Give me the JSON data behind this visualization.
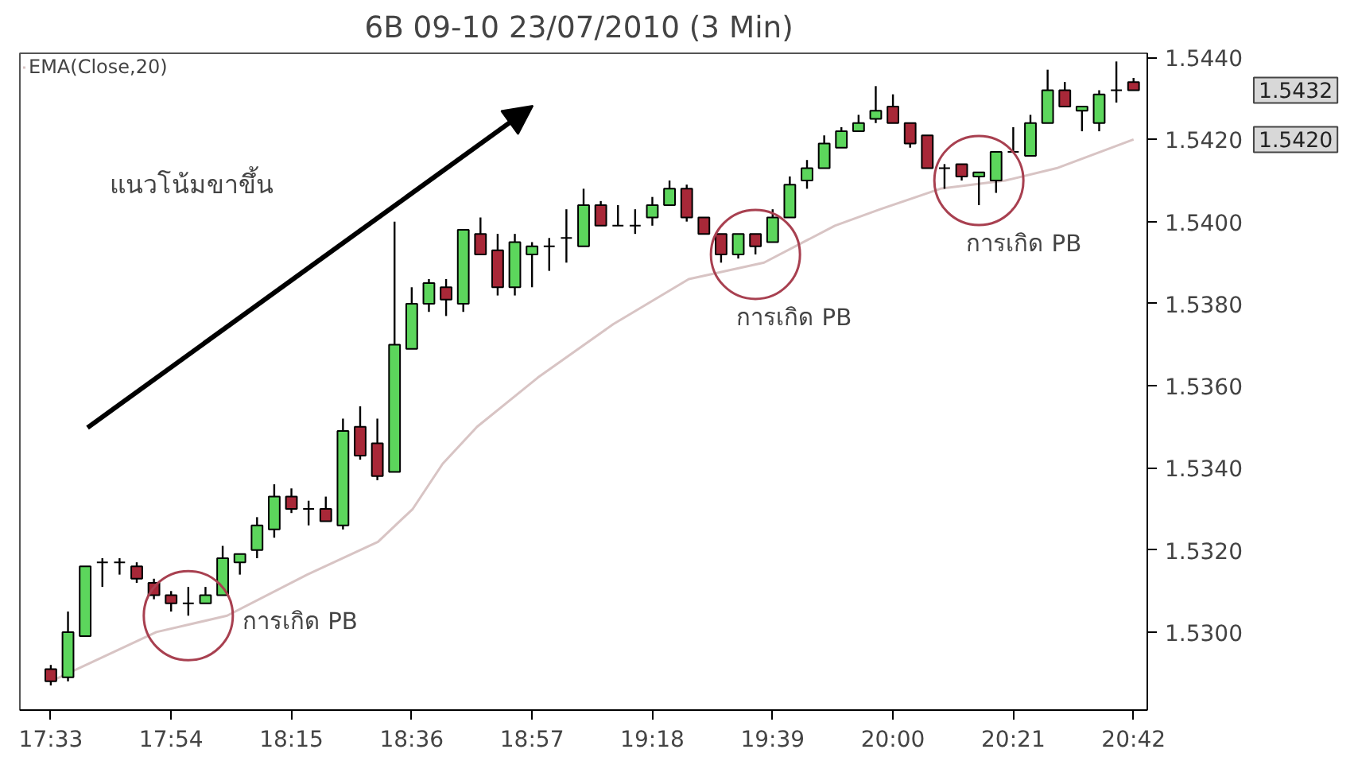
{
  "chart_data": {
    "type": "candlestick",
    "title": "6B 09-10  23/07/2010 (3 Min)",
    "x": [
      17.55,
      17.6,
      17.65,
      17.7,
      17.75,
      17.8,
      17.85,
      17.9,
      17.95,
      18.0,
      18.05,
      18.1,
      18.15,
      18.2,
      18.25,
      18.3,
      18.35,
      18.4,
      18.45,
      18.5,
      18.55,
      18.6,
      18.65,
      18.7,
      18.75,
      18.8,
      18.85,
      18.9,
      18.95,
      19.0,
      19.05,
      19.1,
      19.15,
      19.2,
      19.25,
      19.3,
      19.35,
      19.4,
      19.45,
      19.5,
      19.55,
      19.6,
      19.65,
      19.7,
      19.75,
      19.8,
      19.85,
      19.9,
      19.95,
      20.0,
      20.05,
      20.1,
      20.15,
      20.2,
      20.25,
      20.3,
      20.35,
      20.4,
      20.45,
      20.5,
      20.55,
      20.6,
      20.65,
      20.7
    ],
    "ohlc": [
      [
        1.5291,
        1.5292,
        1.5287,
        1.5288
      ],
      [
        1.5289,
        1.5305,
        1.5288,
        1.53
      ],
      [
        1.5299,
        1.5316,
        1.5299,
        1.5316
      ],
      [
        1.5317,
        1.5318,
        1.5311,
        1.5317
      ],
      [
        1.5317,
        1.5318,
        1.5314,
        1.5317
      ],
      [
        1.5316,
        1.5317,
        1.5312,
        1.5313
      ],
      [
        1.5312,
        1.5313,
        1.5308,
        1.5309
      ],
      [
        1.5309,
        1.531,
        1.5305,
        1.5307
      ],
      [
        1.5307,
        1.5311,
        1.5304,
        1.5307
      ],
      [
        1.5307,
        1.5311,
        1.5307,
        1.5309
      ],
      [
        1.5309,
        1.5321,
        1.5309,
        1.5318
      ],
      [
        1.5317,
        1.5319,
        1.5314,
        1.5319
      ],
      [
        1.532,
        1.5328,
        1.5318,
        1.5326
      ],
      [
        1.5325,
        1.5336,
        1.5323,
        1.5333
      ],
      [
        1.5333,
        1.5335,
        1.5329,
        1.533
      ],
      [
        1.533,
        1.5332,
        1.5326,
        1.533
      ],
      [
        1.533,
        1.5333,
        1.5327,
        1.5327
      ],
      [
        1.5326,
        1.5352,
        1.5325,
        1.5349
      ],
      [
        1.535,
        1.5355,
        1.5342,
        1.5343
      ],
      [
        1.5346,
        1.5352,
        1.5337,
        1.5338
      ],
      [
        1.5339,
        1.54,
        1.5339,
        1.537
      ],
      [
        1.5369,
        1.5384,
        1.5369,
        1.538
      ],
      [
        1.538,
        1.5386,
        1.5378,
        1.5385
      ],
      [
        1.5384,
        1.5386,
        1.5377,
        1.5381
      ],
      [
        1.538,
        1.5398,
        1.5378,
        1.5398
      ],
      [
        1.5397,
        1.5401,
        1.5392,
        1.5392
      ],
      [
        1.5393,
        1.5397,
        1.5382,
        1.5384
      ],
      [
        1.5384,
        1.5397,
        1.5382,
        1.5395
      ],
      [
        1.5392,
        1.5395,
        1.5384,
        1.5394
      ],
      [
        1.5394,
        1.5396,
        1.5388,
        1.5394
      ],
      [
        1.5396,
        1.5403,
        1.539,
        1.5396
      ],
      [
        1.5394,
        1.5408,
        1.5394,
        1.5404
      ],
      [
        1.5404,
        1.5405,
        1.5399,
        1.5399
      ],
      [
        1.5399,
        1.5404,
        1.5399,
        1.5399
      ],
      [
        1.5399,
        1.5403,
        1.5397,
        1.5399
      ],
      [
        1.5401,
        1.5406,
        1.5399,
        1.5404
      ],
      [
        1.5404,
        1.541,
        1.5404,
        1.5408
      ],
      [
        1.5408,
        1.5409,
        1.54,
        1.5401
      ],
      [
        1.5401,
        1.5401,
        1.5397,
        1.5397
      ],
      [
        1.5397,
        1.5397,
        1.539,
        1.5392
      ],
      [
        1.5392,
        1.5397,
        1.5391,
        1.5397
      ],
      [
        1.5397,
        1.5397,
        1.5392,
        1.5394
      ],
      [
        1.5395,
        1.5403,
        1.5395,
        1.5401
      ],
      [
        1.5401,
        1.5411,
        1.5401,
        1.5409
      ],
      [
        1.541,
        1.5415,
        1.5408,
        1.5413
      ],
      [
        1.5413,
        1.5421,
        1.5413,
        1.5419
      ],
      [
        1.5418,
        1.5423,
        1.5418,
        1.5422
      ],
      [
        1.5422,
        1.5426,
        1.5422,
        1.5424
      ],
      [
        1.5425,
        1.5433,
        1.5424,
        1.5427
      ],
      [
        1.5428,
        1.5431,
        1.5424,
        1.5424
      ],
      [
        1.5424,
        1.5424,
        1.5418,
        1.5419
      ],
      [
        1.5421,
        1.5421,
        1.5413,
        1.5413
      ],
      [
        1.5413,
        1.5414,
        1.5408,
        1.5413
      ],
      [
        1.5414,
        1.5414,
        1.541,
        1.5411
      ],
      [
        1.5411,
        1.5412,
        1.5404,
        1.5412
      ],
      [
        1.541,
        1.5417,
        1.5407,
        1.5417
      ],
      [
        1.5417,
        1.5423,
        1.5417,
        1.5417
      ],
      [
        1.5416,
        1.5426,
        1.5416,
        1.5424
      ],
      [
        1.5424,
        1.5437,
        1.5424,
        1.5432
      ],
      [
        1.5432,
        1.5434,
        1.5428,
        1.5428
      ],
      [
        1.5427,
        1.5428,
        1.5422,
        1.5428
      ],
      [
        1.5424,
        1.5432,
        1.5422,
        1.5431
      ],
      [
        1.5432,
        1.5439,
        1.5429,
        1.5432
      ],
      [
        1.5434,
        1.5435,
        1.5432,
        1.5432
      ]
    ],
    "colors": [
      "#a82838",
      "#5cd65c",
      "#5cd65c",
      "#000000",
      "#000000",
      "#a82838",
      "#a82838",
      "#a82838",
      "#000000",
      "#5cd65c",
      "#5cd65c",
      "#5cd65c",
      "#5cd65c",
      "#5cd65c",
      "#a82838",
      "#000000",
      "#a82838",
      "#5cd65c",
      "#a82838",
      "#a82838",
      "#5cd65c",
      "#5cd65c",
      "#5cd65c",
      "#a82838",
      "#5cd65c",
      "#a82838",
      "#a82838",
      "#5cd65c",
      "#5cd65c",
      "#000000",
      "#000000",
      "#5cd65c",
      "#a82838",
      "#000000",
      "#000000",
      "#5cd65c",
      "#5cd65c",
      "#a82838",
      "#a82838",
      "#a82838",
      "#5cd65c",
      "#a82838",
      "#5cd65c",
      "#5cd65c",
      "#5cd65c",
      "#5cd65c",
      "#5cd65c",
      "#5cd65c",
      "#5cd65c",
      "#a82838",
      "#a82838",
      "#a82838",
      "#000000",
      "#a82838",
      "#5cd65c",
      "#5cd65c",
      "#000000",
      "#5cd65c",
      "#5cd65c",
      "#a82838",
      "#5cd65c",
      "#5cd65c",
      "#000000",
      "#a82838"
    ],
    "series": [
      {
        "type": "line",
        "name": "EMA(Close,20)",
        "color": "#d8c4c4",
        "x": [
          17.55,
          17.857,
          18.063,
          18.296,
          18.502,
          18.603,
          18.69,
          18.79,
          18.967,
          19.186,
          19.406,
          19.625,
          19.831,
          19.963,
          20.138,
          20.327,
          20.476,
          20.7
        ],
        "values": [
          1.5288,
          1.53,
          1.5304,
          1.5314,
          1.5322,
          1.533,
          1.5341,
          1.535,
          1.5362,
          1.5375,
          1.5386,
          1.539,
          1.5399,
          1.5403,
          1.5408,
          1.541,
          1.5413,
          1.542
        ]
      }
    ],
    "xlim": [
      17.46,
      20.74
    ],
    "ylim": [
      1.5281,
      1.5441
    ],
    "xticks": [
      {
        "value": 17.55,
        "label": "17:33"
      },
      {
        "value": 17.9,
        "label": "17:54"
      },
      {
        "value": 18.25,
        "label": "18:15"
      },
      {
        "value": 18.6,
        "label": "18:36"
      },
      {
        "value": 18.95,
        "label": "18:57"
      },
      {
        "value": 19.3,
        "label": "19:18"
      },
      {
        "value": 19.65,
        "label": "19:39"
      },
      {
        "value": 20.0,
        "label": "20:00"
      },
      {
        "value": 20.35,
        "label": "20:21"
      },
      {
        "value": 20.7,
        "label": "20:42"
      }
    ],
    "yticks": [
      {
        "value": 1.53,
        "label": "1.5300"
      },
      {
        "value": 1.532,
        "label": "1.5320"
      },
      {
        "value": 1.534,
        "label": "1.5340"
      },
      {
        "value": 1.536,
        "label": "1.5360"
      },
      {
        "value": 1.538,
        "label": "1.5380"
      },
      {
        "value": 1.54,
        "label": "1.5400"
      },
      {
        "value": 1.542,
        "label": "1.5420"
      },
      {
        "value": 1.544,
        "label": "1.5440"
      }
    ],
    "annotations": [
      "แนวโน้มขาขึ้น",
      {
        "text": "การเกิด PB",
        "x": 17.95,
        "y": 1.5304
      },
      {
        "text": "การเกิด PB",
        "x": 19.6,
        "y": 1.5392
      },
      {
        "text": "การเกิด PB",
        "x": 20.25,
        "y": 1.541
      },
      "1.5432",
      "1.5420"
    ],
    "legend": "top left",
    "grid": false
  }
}
